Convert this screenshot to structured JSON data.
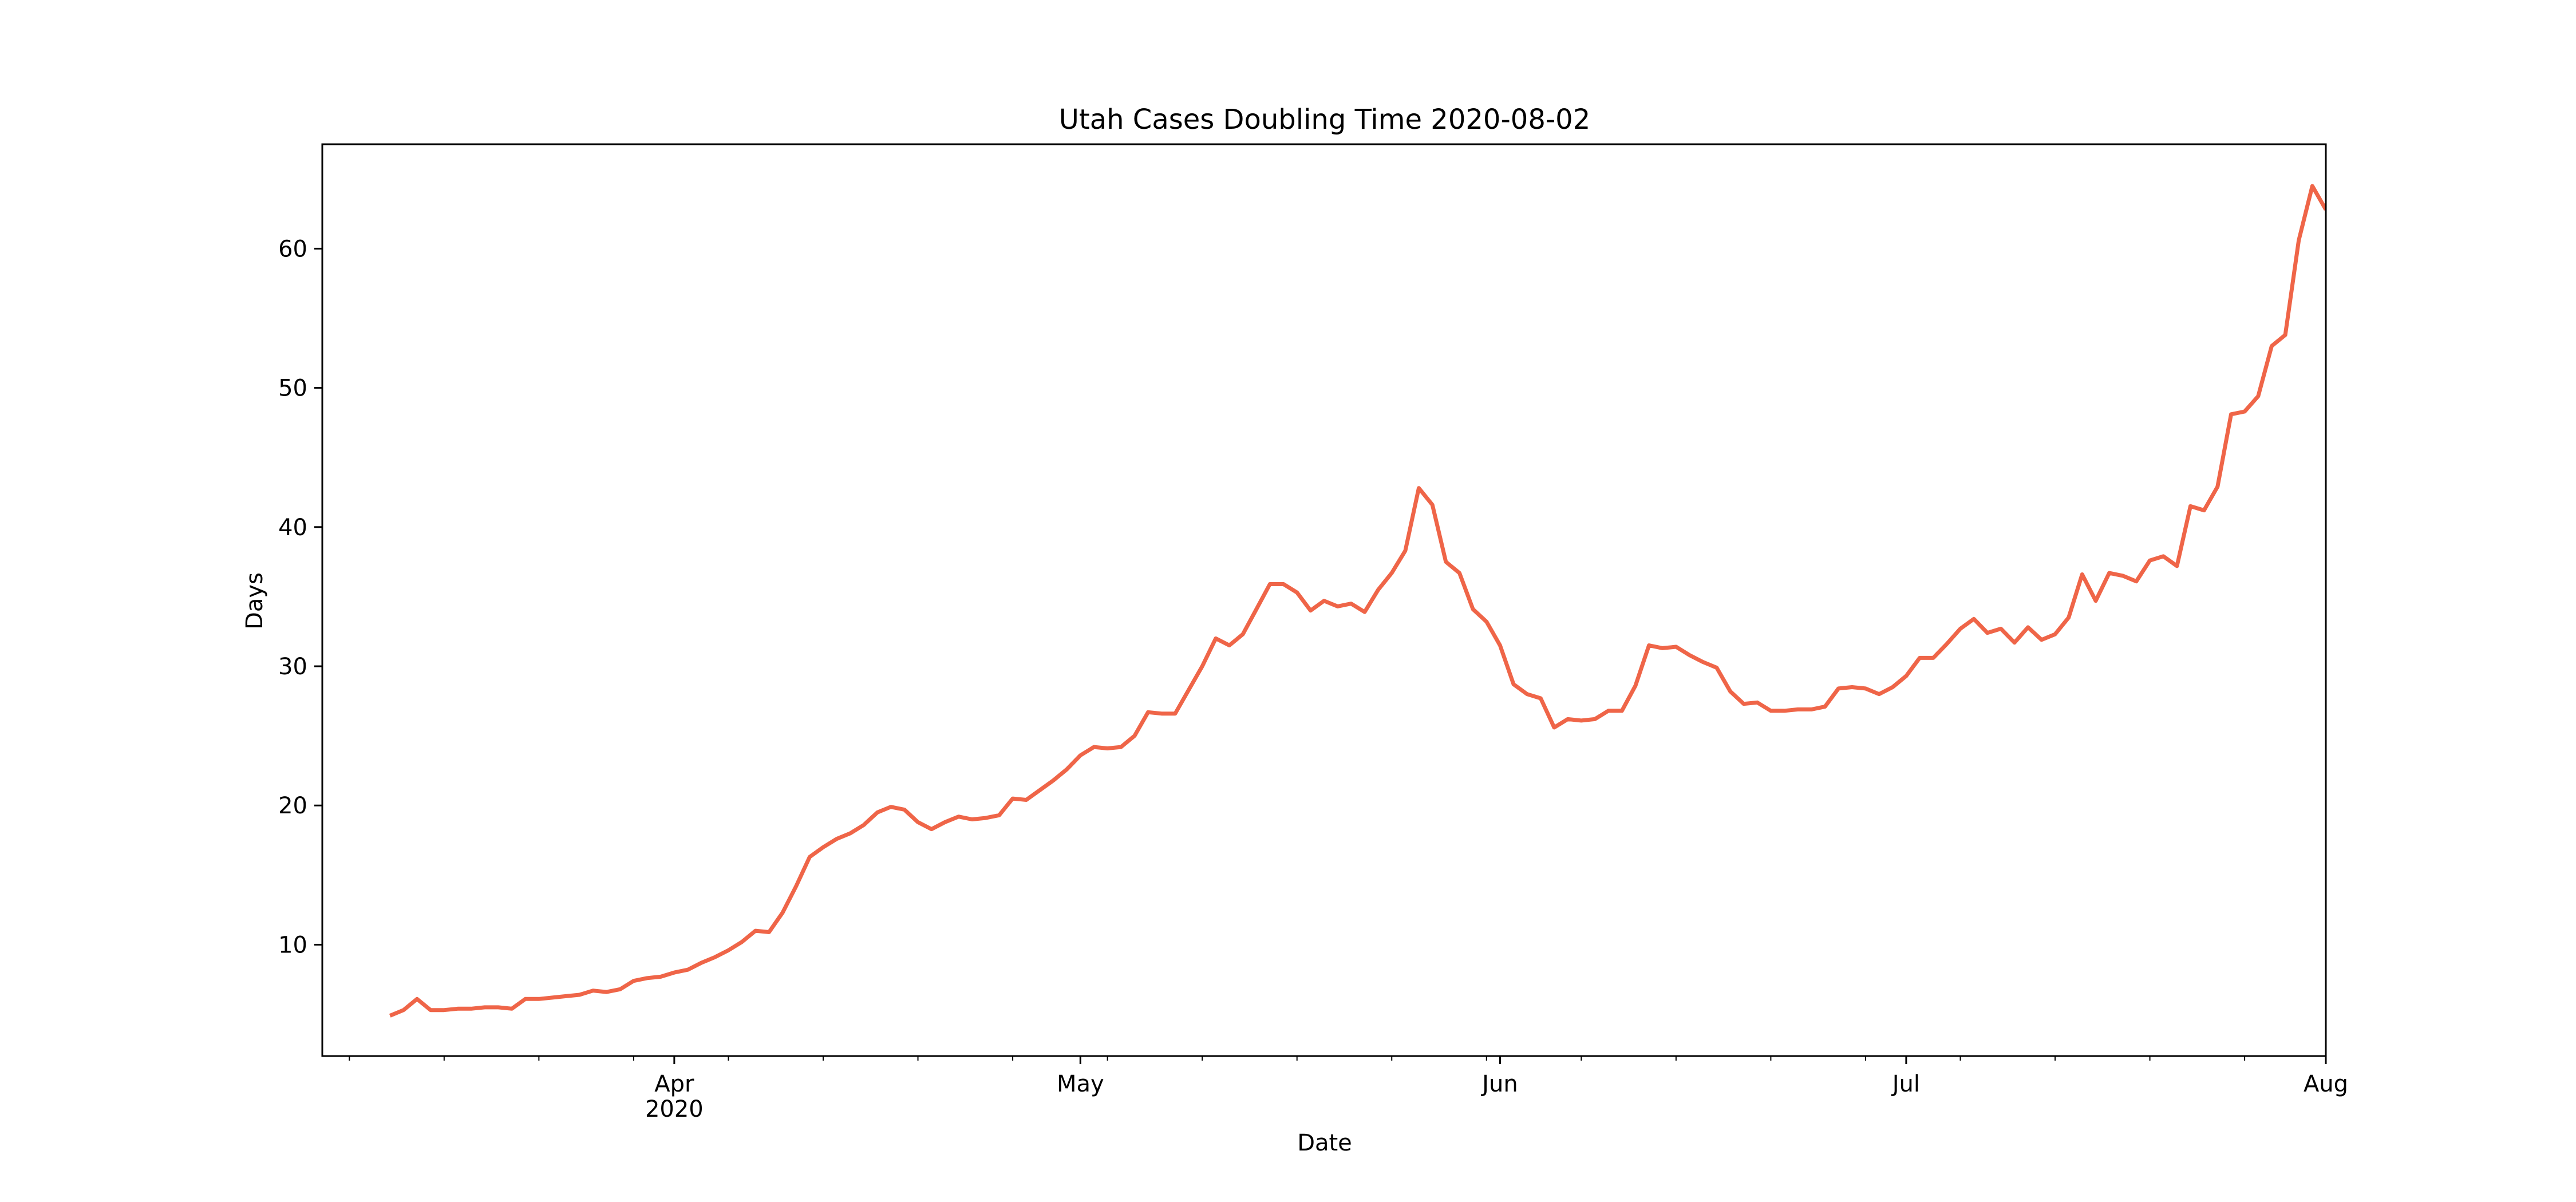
{
  "chart_data": {
    "type": "line",
    "title": "Utah Cases Doubling Time 2020-08-02",
    "xlabel": "Date",
    "ylabel": "Days",
    "xlim": [
      "2020-03-06",
      "2020-08-01"
    ],
    "ylim": [
      2,
      67.5
    ],
    "grid": false,
    "legend": "none",
    "line_color": "#ef6548",
    "x_ticks": [
      {
        "date": "2020-04-01",
        "label": "Apr",
        "sublabel": "2020"
      },
      {
        "date": "2020-05-01",
        "label": "May",
        "sublabel": ""
      },
      {
        "date": "2020-06-01",
        "label": "Jun",
        "sublabel": ""
      },
      {
        "date": "2020-07-01",
        "label": "Jul",
        "sublabel": ""
      },
      {
        "date": "2020-08-01",
        "label": "Aug",
        "sublabel": ""
      }
    ],
    "x_minor_ticks": [
      "2020-03-08",
      "2020-03-15",
      "2020-03-22",
      "2020-03-29",
      "2020-04-05",
      "2020-04-12",
      "2020-04-19",
      "2020-04-26",
      "2020-05-03",
      "2020-05-10",
      "2020-05-17",
      "2020-05-24",
      "2020-05-31",
      "2020-06-07",
      "2020-06-14",
      "2020-06-21",
      "2020-06-28",
      "2020-07-05",
      "2020-07-12",
      "2020-07-19",
      "2020-07-26"
    ],
    "y_ticks": [
      10,
      20,
      30,
      40,
      50,
      60
    ],
    "series": [
      {
        "x": [
          "2020-03-11",
          "2020-03-12",
          "2020-03-13",
          "2020-03-14",
          "2020-03-15",
          "2020-03-16",
          "2020-03-17",
          "2020-03-18",
          "2020-03-19",
          "2020-03-20",
          "2020-03-21",
          "2020-03-22",
          "2020-03-23",
          "2020-03-24",
          "2020-03-25",
          "2020-03-26",
          "2020-03-27",
          "2020-03-28",
          "2020-03-29",
          "2020-03-30",
          "2020-03-31",
          "2020-04-01",
          "2020-04-02",
          "2020-04-03",
          "2020-04-04",
          "2020-04-05",
          "2020-04-06",
          "2020-04-07",
          "2020-04-08",
          "2020-04-09",
          "2020-04-10",
          "2020-04-11",
          "2020-04-12",
          "2020-04-13",
          "2020-04-14",
          "2020-04-15",
          "2020-04-16",
          "2020-04-17",
          "2020-04-18",
          "2020-04-19",
          "2020-04-20",
          "2020-04-21",
          "2020-04-22",
          "2020-04-23",
          "2020-04-24",
          "2020-04-25",
          "2020-04-26",
          "2020-04-27",
          "2020-04-28",
          "2020-04-29",
          "2020-04-30",
          "2020-05-01",
          "2020-05-02",
          "2020-05-03",
          "2020-05-04",
          "2020-05-05",
          "2020-05-06",
          "2020-05-07",
          "2020-05-08",
          "2020-05-09",
          "2020-05-10",
          "2020-05-11",
          "2020-05-12",
          "2020-05-13",
          "2020-05-14",
          "2020-05-15",
          "2020-05-16",
          "2020-05-17",
          "2020-05-18",
          "2020-05-19",
          "2020-05-20",
          "2020-05-21",
          "2020-05-22",
          "2020-05-23",
          "2020-05-24",
          "2020-05-25",
          "2020-05-26",
          "2020-05-27",
          "2020-05-28",
          "2020-05-29",
          "2020-05-30",
          "2020-05-31",
          "2020-06-01",
          "2020-06-02",
          "2020-06-03",
          "2020-06-04",
          "2020-06-05",
          "2020-06-06",
          "2020-06-07",
          "2020-06-08",
          "2020-06-09",
          "2020-06-10",
          "2020-06-11",
          "2020-06-12",
          "2020-06-13",
          "2020-06-14",
          "2020-06-15",
          "2020-06-16",
          "2020-06-17",
          "2020-06-18",
          "2020-06-19",
          "2020-06-20",
          "2020-06-21",
          "2020-06-22",
          "2020-06-23",
          "2020-06-24",
          "2020-06-25",
          "2020-06-26",
          "2020-06-27",
          "2020-06-28",
          "2020-06-29",
          "2020-06-30",
          "2020-07-01",
          "2020-07-02",
          "2020-07-03",
          "2020-07-04",
          "2020-07-05",
          "2020-07-06",
          "2020-07-07",
          "2020-07-08",
          "2020-07-09",
          "2020-07-10",
          "2020-07-11",
          "2020-07-12",
          "2020-07-13",
          "2020-07-14",
          "2020-07-15",
          "2020-07-16",
          "2020-07-17",
          "2020-07-18",
          "2020-07-19",
          "2020-07-20",
          "2020-07-21",
          "2020-07-22",
          "2020-07-23",
          "2020-07-24",
          "2020-07-25",
          "2020-07-26",
          "2020-07-27",
          "2020-07-28",
          "2020-07-29",
          "2020-07-30",
          "2020-07-31",
          "2020-08-01"
        ],
        "y": [
          4.9,
          5.3,
          6.1,
          5.3,
          5.3,
          5.4,
          5.4,
          5.5,
          5.5,
          5.4,
          6.1,
          6.1,
          6.2,
          6.3,
          6.4,
          6.7,
          6.6,
          6.8,
          7.4,
          7.6,
          7.7,
          8.0,
          8.2,
          8.7,
          9.1,
          9.6,
          10.2,
          11.0,
          10.9,
          12.3,
          14.2,
          16.3,
          17.0,
          17.6,
          18.0,
          18.6,
          19.5,
          19.9,
          19.7,
          18.8,
          18.3,
          18.8,
          19.2,
          19.0,
          19.1,
          19.3,
          20.5,
          20.4,
          21.1,
          21.8,
          22.6,
          23.6,
          24.2,
          24.1,
          24.2,
          25.0,
          26.7,
          26.6,
          26.6,
          28.3,
          30.0,
          32.0,
          31.5,
          32.3,
          34.1,
          35.9,
          35.9,
          35.3,
          34.0,
          34.7,
          34.3,
          34.5,
          33.9,
          35.5,
          36.7,
          38.3,
          42.8,
          41.6,
          37.5,
          36.7,
          34.1,
          33.2,
          31.5,
          28.7,
          28.0,
          27.7,
          25.6,
          26.2,
          26.1,
          26.2,
          26.8,
          26.8,
          28.6,
          31.5,
          31.3,
          31.4,
          30.8,
          30.3,
          29.9,
          28.2,
          27.3,
          27.4,
          26.8,
          26.8,
          26.9,
          26.9,
          27.1,
          28.4,
          28.5,
          28.4,
          28.0,
          28.5,
          29.3,
          30.6,
          30.6,
          31.6,
          32.7,
          33.4,
          32.4,
          32.7,
          31.7,
          32.8,
          31.9,
          32.3,
          33.5,
          36.6,
          34.7,
          36.7,
          36.5,
          36.1,
          37.6,
          37.9,
          37.2,
          41.5,
          41.2,
          42.9,
          48.1,
          48.3,
          49.4,
          53.0,
          53.8,
          60.6,
          64.5,
          62.8
        ]
      }
    ]
  }
}
